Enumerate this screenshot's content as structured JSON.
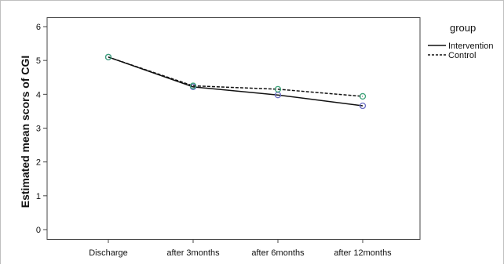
{
  "chart_data": {
    "type": "line",
    "title": "",
    "xlabel": "",
    "ylabel": "Estimated mean scors of CGI",
    "categories": [
      "Discharge",
      "after 3months",
      "after 6months",
      "after 12months"
    ],
    "ylim": [
      0,
      6
    ],
    "yticks": [
      "0",
      "1",
      "2",
      "3",
      "4",
      "5",
      "6"
    ],
    "grid": false,
    "legend": {
      "title": "group",
      "placement": "top-right, outside plot",
      "entries": [
        "Intervention",
        "Control"
      ]
    },
    "series": [
      {
        "name": "Intervention",
        "line_style": "solid",
        "marker_color": "#6b6fc4",
        "values": [
          5.1,
          4.22,
          3.98,
          3.66
        ]
      },
      {
        "name": "Control",
        "line_style": "dashed",
        "marker_color": "#3fa37a",
        "values": [
          5.1,
          4.25,
          4.15,
          3.94
        ]
      }
    ]
  }
}
